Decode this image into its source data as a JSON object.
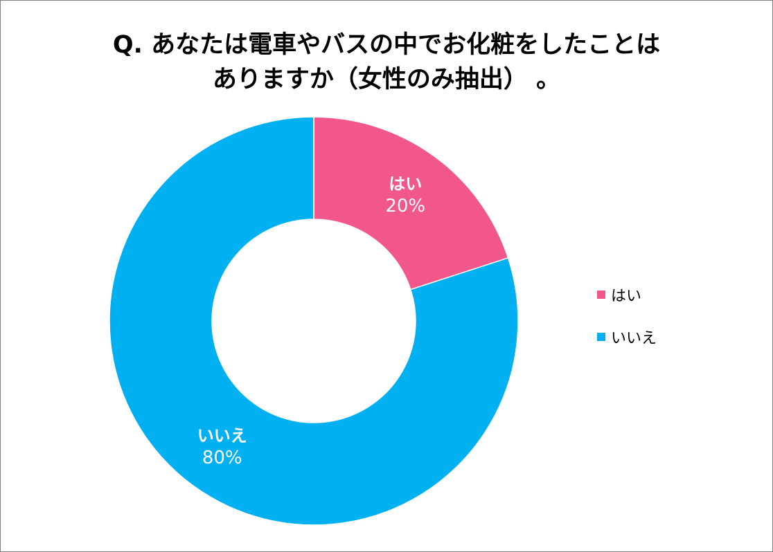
{
  "chart_data": {
    "type": "pie",
    "title_lines": [
      "Q.  あなたは電車やバスの中でお化粧をしたことは",
      "ありますか（女性のみ抽出）  。"
    ],
    "categories": [
      "はい",
      "いいえ"
    ],
    "values": [
      20,
      80
    ],
    "value_labels": [
      "20%",
      "80%"
    ],
    "colors": [
      "#f2578b",
      "#00b0f0"
    ],
    "donut": true,
    "legend": "right"
  }
}
